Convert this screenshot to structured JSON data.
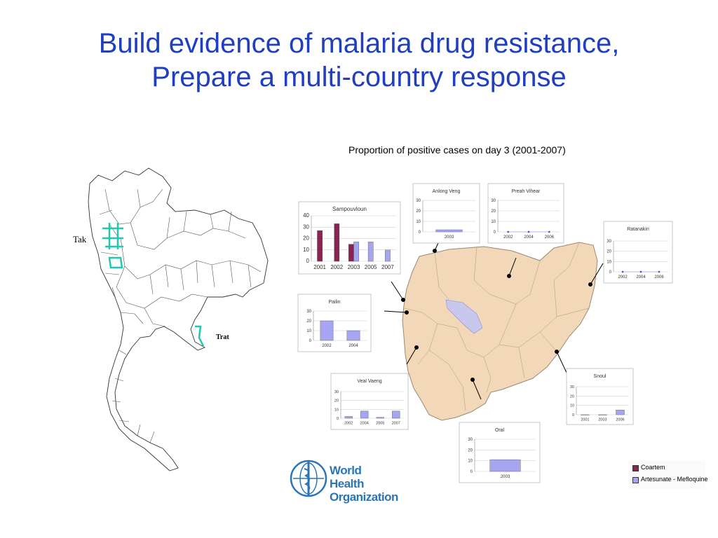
{
  "slide": {
    "title_line1": "Build evidence of malaria drug resistance,",
    "title_line2": "Prepare a multi-country response",
    "subtitle": "Proportion of positive cases on day 3 (2001-2007)"
  },
  "thailand_map": {
    "label_tak": "Tak",
    "label_trat": "Trat"
  },
  "colors": {
    "title": "#1f3fbf",
    "coartem": "#8b2252",
    "artesunate": "#a5a5f2",
    "cambodia": "#f2d7b8"
  },
  "legend": {
    "items": [
      {
        "label": "Coartem",
        "color": "#8b2252"
      },
      {
        "label": "Artesunate - Mefloquine",
        "color": "#a5a5f2"
      }
    ]
  },
  "logo": {
    "line1": "World Health",
    "line2": "Organization"
  },
  "chart_data": [
    {
      "type": "bar",
      "title": "Sampouvloun",
      "categories": [
        "2001",
        "2002",
        "2003",
        "2005",
        "2007"
      ],
      "yticks": [
        "0",
        "10",
        "20",
        "30",
        "40"
      ],
      "ylim": [
        0,
        40
      ],
      "series": [
        {
          "name": "Coartem",
          "values": [
            27,
            33,
            15,
            null,
            null
          ]
        },
        {
          "name": "Artesunate - Mefloquine",
          "values": [
            null,
            null,
            17,
            17,
            10
          ]
        }
      ]
    },
    {
      "type": "bar",
      "title": "Anlong Veng",
      "categories": [
        "2003"
      ],
      "yticks": [
        "0",
        "10",
        "20",
        "30"
      ],
      "ylim": [
        0,
        30
      ],
      "series": [
        {
          "name": "Artesunate - Mefloquine",
          "values": [
            2
          ]
        }
      ]
    },
    {
      "type": "line",
      "title": "Preah Vihear",
      "categories": [
        "2002",
        "2004",
        "2006"
      ],
      "yticks": [
        "0",
        "10",
        "20",
        "30"
      ],
      "ylim": [
        0,
        30
      ],
      "series": [
        {
          "name": "Artesunate - Mefloquine",
          "values": [
            0,
            0,
            0
          ]
        }
      ]
    },
    {
      "type": "line",
      "title": "Ratanakiri",
      "categories": [
        "2002",
        "2004",
        "2006"
      ],
      "yticks": [
        "0",
        "10",
        "20",
        "30"
      ],
      "ylim": [
        0,
        30
      ],
      "series": [
        {
          "name": "Artesunate - Mefloquine",
          "values": [
            0,
            0,
            0
          ]
        }
      ]
    },
    {
      "type": "bar",
      "title": "Pailin",
      "categories": [
        "2002",
        "2004"
      ],
      "yticks": [
        "0",
        "10",
        "20",
        "30"
      ],
      "ylim": [
        0,
        30
      ],
      "series": [
        {
          "name": "Artesunate - Mefloquine",
          "values": [
            20,
            10
          ]
        }
      ]
    },
    {
      "type": "bar",
      "title": "Veal Vaeng",
      "categories": [
        "2002",
        "2004",
        "2005",
        "2007"
      ],
      "yticks": [
        "0",
        "10",
        "20",
        "30"
      ],
      "ylim": [
        0,
        30
      ],
      "series": [
        {
          "name": "Artesunate - Mefloquine",
          "values": [
            2,
            8,
            1,
            8
          ]
        }
      ]
    },
    {
      "type": "bar",
      "title": "Snoul",
      "categories": [
        "2001",
        "2003",
        "2006"
      ],
      "yticks": [
        "0",
        "10",
        "20",
        "30"
      ],
      "ylim": [
        0,
        30
      ],
      "series": [
        {
          "name": "Artesunate - Mefloquine",
          "values": [
            0,
            0,
            5
          ]
        }
      ]
    },
    {
      "type": "bar",
      "title": "Oral",
      "categories": [
        "2003"
      ],
      "yticks": [
        "0",
        "10",
        "20",
        "30"
      ],
      "ylim": [
        0,
        30
      ],
      "series": [
        {
          "name": "Artesunate - Mefloquine",
          "values": [
            11
          ]
        }
      ]
    }
  ]
}
